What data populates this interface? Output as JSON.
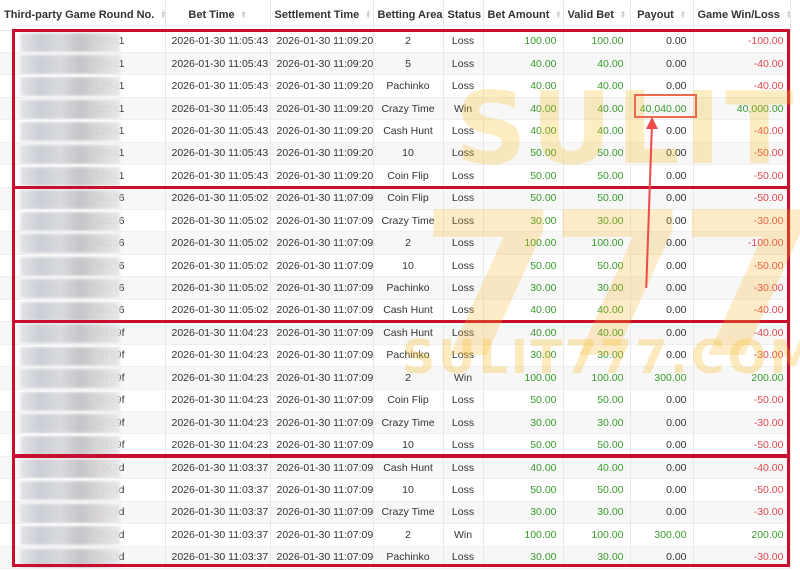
{
  "table": {
    "columns": [
      {
        "label": "Third-party Game Round No.",
        "sortable": true
      },
      {
        "label": "Bet Time",
        "sortable": true
      },
      {
        "label": "Settlement Time",
        "sortable": true
      },
      {
        "label": "Betting Area",
        "sortable": false
      },
      {
        "label": "Status",
        "sortable": false
      },
      {
        "label": "Bet Amount",
        "sortable": true
      },
      {
        "label": "Valid Bet",
        "sortable": true
      },
      {
        "label": "Payout",
        "sortable": true
      },
      {
        "label": "Game Win/Loss",
        "sortable": true
      }
    ],
    "rows": [
      {
        "round": "185a1",
        "bet_time": "2026-01-30 11:05:43",
        "settle_time": "2026-01-30 11:09:20",
        "area": "2",
        "status": "Loss",
        "bet": "100.00",
        "valid": "100.00",
        "payout": "0.00",
        "winloss": "-100.00"
      },
      {
        "round": "185a1",
        "bet_time": "2026-01-30 11:05:43",
        "settle_time": "2026-01-30 11:09:20",
        "area": "5",
        "status": "Loss",
        "bet": "40.00",
        "valid": "40.00",
        "payout": "0.00",
        "winloss": "-40.00"
      },
      {
        "round": "185a1",
        "bet_time": "2026-01-30 11:05:43",
        "settle_time": "2026-01-30 11:09:20",
        "area": "Pachinko",
        "status": "Loss",
        "bet": "40.00",
        "valid": "40.00",
        "payout": "0.00",
        "winloss": "-40.00"
      },
      {
        "round": "185a1",
        "bet_time": "2026-01-30 11:05:43",
        "settle_time": "2026-01-30 11:09:20",
        "area": "Crazy Time",
        "status": "Win",
        "bet": "40.00",
        "valid": "40.00",
        "payout": "40,040.00",
        "winloss": "40,000.00"
      },
      {
        "round": "185a1",
        "bet_time": "2026-01-30 11:05:43",
        "settle_time": "2026-01-30 11:09:20",
        "area": "Cash Hunt",
        "status": "Loss",
        "bet": "40.00",
        "valid": "40.00",
        "payout": "0.00",
        "winloss": "-40.00"
      },
      {
        "round": "185a1",
        "bet_time": "2026-01-30 11:05:43",
        "settle_time": "2026-01-30 11:09:20",
        "area": "10",
        "status": "Loss",
        "bet": "50.00",
        "valid": "50.00",
        "payout": "0.00",
        "winloss": "-50.00"
      },
      {
        "round": "185a1",
        "bet_time": "2026-01-30 11:05:43",
        "settle_time": "2026-01-30 11:09:20",
        "area": "Coin Flip",
        "status": "Loss",
        "bet": "50.00",
        "valid": "50.00",
        "payout": "0.00",
        "winloss": "-50.00"
      },
      {
        "round": "4b116",
        "bet_time": "2026-01-30 11:05:02",
        "settle_time": "2026-01-30 11:07:09",
        "area": "Coin Flip",
        "status": "Loss",
        "bet": "50.00",
        "valid": "50.00",
        "payout": "0.00",
        "winloss": "-50.00"
      },
      {
        "round": "4b116",
        "bet_time": "2026-01-30 11:05:02",
        "settle_time": "2026-01-30 11:07:09",
        "area": "Crazy Time",
        "status": "Loss",
        "bet": "30.00",
        "valid": "30.00",
        "payout": "0.00",
        "winloss": "-30.00"
      },
      {
        "round": "4b116",
        "bet_time": "2026-01-30 11:05:02",
        "settle_time": "2026-01-30 11:07:09",
        "area": "2",
        "status": "Loss",
        "bet": "100.00",
        "valid": "100.00",
        "payout": "0.00",
        "winloss": "-100.00"
      },
      {
        "round": "4b116",
        "bet_time": "2026-01-30 11:05:02",
        "settle_time": "2026-01-30 11:07:09",
        "area": "10",
        "status": "Loss",
        "bet": "50.00",
        "valid": "50.00",
        "payout": "0.00",
        "winloss": "-50.00"
      },
      {
        "round": "4b116",
        "bet_time": "2026-01-30 11:05:02",
        "settle_time": "2026-01-30 11:07:09",
        "area": "Pachinko",
        "status": "Loss",
        "bet": "30.00",
        "valid": "30.00",
        "payout": "0.00",
        "winloss": "-30.00"
      },
      {
        "round": "4b116",
        "bet_time": "2026-01-30 11:05:02",
        "settle_time": "2026-01-30 11:07:09",
        "area": "Cash Hunt",
        "status": "Loss",
        "bet": "40.00",
        "valid": "40.00",
        "payout": "0.00",
        "winloss": "-40.00"
      },
      {
        "round": "4789f",
        "bet_time": "2026-01-30 11:04:23",
        "settle_time": "2026-01-30 11:07:09",
        "area": "Cash Hunt",
        "status": "Loss",
        "bet": "40.00",
        "valid": "40.00",
        "payout": "0.00",
        "winloss": "-40.00"
      },
      {
        "round": "4789f",
        "bet_time": "2026-01-30 11:04:23",
        "settle_time": "2026-01-30 11:07:09",
        "area": "Pachinko",
        "status": "Loss",
        "bet": "30.00",
        "valid": "30.00",
        "payout": "0.00",
        "winloss": "-30.00"
      },
      {
        "round": "4789f",
        "bet_time": "2026-01-30 11:04:23",
        "settle_time": "2026-01-30 11:07:09",
        "area": "2",
        "status": "Win",
        "bet": "100.00",
        "valid": "100.00",
        "payout": "300.00",
        "winloss": "200.00"
      },
      {
        "round": "4789f",
        "bet_time": "2026-01-30 11:04:23",
        "settle_time": "2026-01-30 11:07:09",
        "area": "Coin Flip",
        "status": "Loss",
        "bet": "50.00",
        "valid": "50.00",
        "payout": "0.00",
        "winloss": "-50.00"
      },
      {
        "round": "4789f",
        "bet_time": "2026-01-30 11:04:23",
        "settle_time": "2026-01-30 11:07:09",
        "area": "Crazy Time",
        "status": "Loss",
        "bet": "30.00",
        "valid": "30.00",
        "payout": "0.00",
        "winloss": "-30.00"
      },
      {
        "round": "4789f",
        "bet_time": "2026-01-30 11:04:23",
        "settle_time": "2026-01-30 11:07:09",
        "area": "10",
        "status": "Loss",
        "bet": "50.00",
        "valid": "50.00",
        "payout": "0.00",
        "winloss": "-50.00"
      },
      {
        "round": "0c3d",
        "bet_time": "2026-01-30 11:03:37",
        "settle_time": "2026-01-30 11:07:09",
        "area": "Cash Hunt",
        "status": "Loss",
        "bet": "40.00",
        "valid": "40.00",
        "payout": "0.00",
        "winloss": "-40.00"
      },
      {
        "round": "0c3d",
        "bet_time": "2026-01-30 11:03:37",
        "settle_time": "2026-01-30 11:07:09",
        "area": "10",
        "status": "Loss",
        "bet": "50.00",
        "valid": "50.00",
        "payout": "0.00",
        "winloss": "-50.00"
      },
      {
        "round": "0c3d",
        "bet_time": "2026-01-30 11:03:37",
        "settle_time": "2026-01-30 11:07:09",
        "area": "Crazy Time",
        "status": "Loss",
        "bet": "30.00",
        "valid": "30.00",
        "payout": "0.00",
        "winloss": "-30.00"
      },
      {
        "round": "50c3d",
        "bet_time": "2026-01-30 11:03:37",
        "settle_time": "2026-01-30 11:07:09",
        "area": "2",
        "status": "Win",
        "bet": "100.00",
        "valid": "100.00",
        "payout": "300.00",
        "winloss": "200.00"
      },
      {
        "round": "50c3d",
        "bet_time": "2026-01-30 11:03:37",
        "settle_time": "2026-01-30 11:07:09",
        "area": "Pachinko",
        "status": "Loss",
        "bet": "30.00",
        "valid": "30.00",
        "payout": "0.00",
        "winloss": "-30.00"
      }
    ]
  },
  "watermark": {
    "line1": "SULIT",
    "line2": "777",
    "line3": "SULIT777.COM"
  },
  "colors": {
    "positive": "#3a9a2e",
    "negative": "#e0484f",
    "group_border": "#c8102e",
    "highlight": "#ee6a4e"
  }
}
